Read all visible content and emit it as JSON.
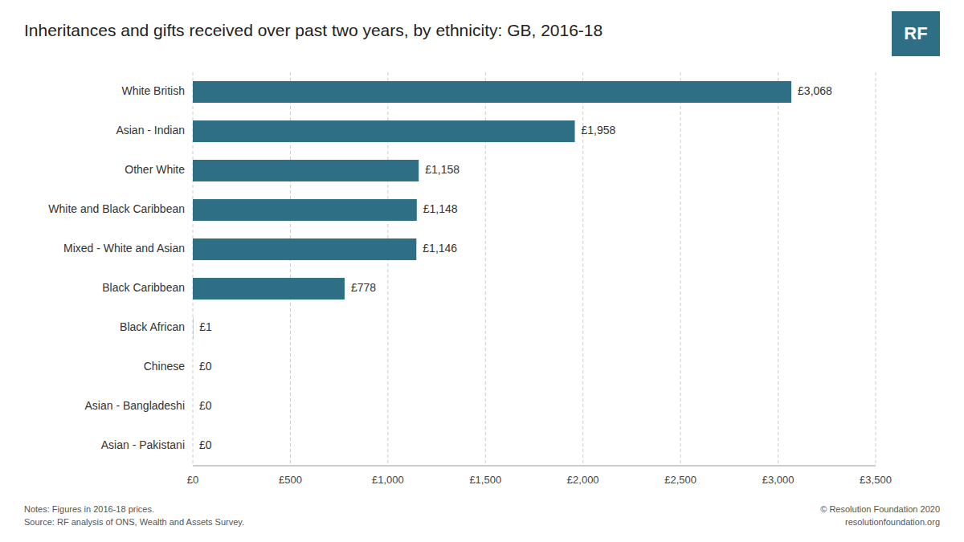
{
  "chart_data": {
    "type": "bar",
    "orientation": "horizontal",
    "title": "Inheritances and gifts received over past two years, by ethnicity: GB, 2016-18",
    "categories": [
      "White British",
      "Asian - Indian",
      "Other White",
      "White and Black Caribbean",
      "Mixed - White and Asian",
      "Black Caribbean",
      "Black African",
      "Chinese",
      "Asian - Bangladeshi",
      "Asian - Pakistani"
    ],
    "values": [
      3068,
      1958,
      1158,
      1148,
      1146,
      778,
      1,
      0,
      0,
      0
    ],
    "value_labels": [
      "£3,068",
      "£1,958",
      "£1,158",
      "£1,148",
      "£1,146",
      "£778",
      "£1",
      "£0",
      "£0",
      "£0"
    ],
    "data_labels": true,
    "color": "#2e6f85",
    "xlim": [
      0,
      3500
    ],
    "xticks": [
      {
        "value": 0,
        "label": "£0"
      },
      {
        "value": 500,
        "label": "£500"
      },
      {
        "value": 1000,
        "label": "£1,000"
      },
      {
        "value": 1500,
        "label": "£1,500"
      },
      {
        "value": 2000,
        "label": "£2,000"
      },
      {
        "value": 2500,
        "label": "£2,500"
      },
      {
        "value": 3000,
        "label": "£3,000"
      },
      {
        "value": 3500,
        "label": "£3,500"
      }
    ],
    "grid": true,
    "annotations": [
      "Notes: Figures in 2016-18 prices.",
      "Source: RF analysis of ONS, Wealth and Assets Survey.",
      "© Resolution Foundation 2020",
      "resolutionfoundation.org",
      "RF"
    ]
  }
}
